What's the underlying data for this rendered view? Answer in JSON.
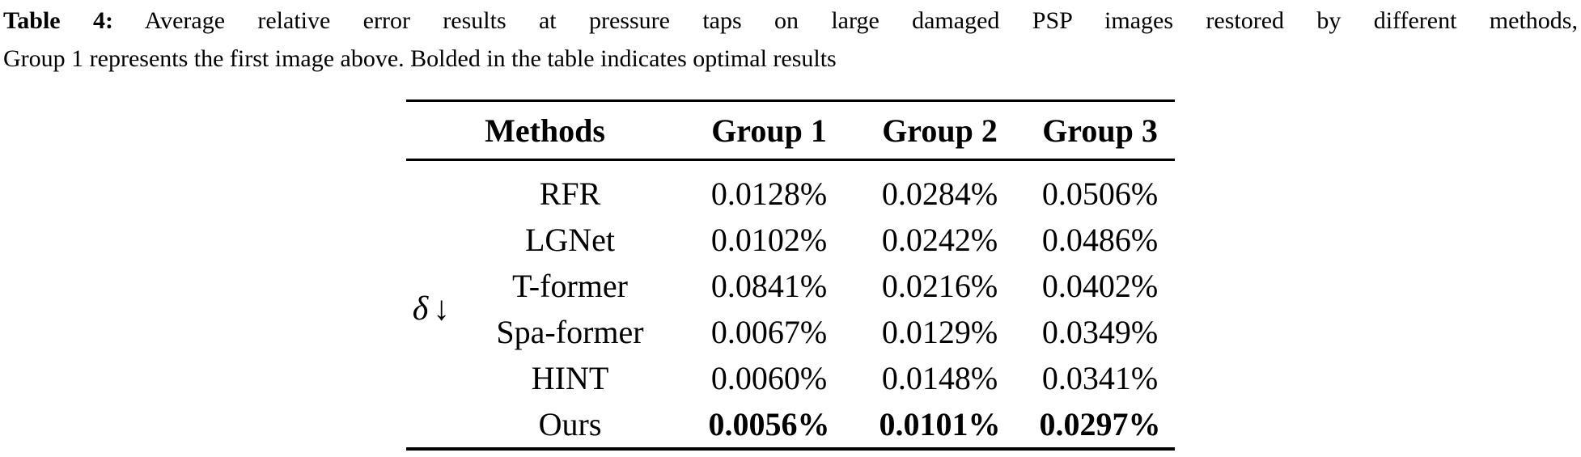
{
  "caption": {
    "label": "Table 4:",
    "line1_rest": "Average relative error results at pressure taps on large damaged PSP images restored by different methods,",
    "line2": "Group 1 represents the first image above. Bolded in the table indicates optimal results"
  },
  "table": {
    "row_label_symbol": "δ",
    "row_label_arrow": "↓",
    "headers": {
      "methods": "Methods",
      "group1": "Group 1",
      "group2": "Group 2",
      "group3": "Group 3"
    },
    "rows": [
      {
        "method": "RFR",
        "group1": "0.0128%",
        "group2": "0.0284%",
        "group3": "0.0506%"
      },
      {
        "method": "LGNet",
        "group1": "0.0102%",
        "group2": "0.0242%",
        "group3": "0.0486%"
      },
      {
        "method": "T-former",
        "group1": "0.0841%",
        "group2": "0.0216%",
        "group3": "0.0402%"
      },
      {
        "method": "Spa-former",
        "group1": "0.0067%",
        "group2": "0.0129%",
        "group3": "0.0349%"
      },
      {
        "method": "HINT",
        "group1": "0.0060%",
        "group2": "0.0148%",
        "group3": "0.0341%"
      },
      {
        "method": "Ours",
        "group1": "0.0056%",
        "group2": "0.0101%",
        "group3": "0.0297%"
      }
    ],
    "optimal_method": "Ours",
    "text_color": "#000000",
    "rule_color": "#000000",
    "background_color": "#ffffff"
  }
}
